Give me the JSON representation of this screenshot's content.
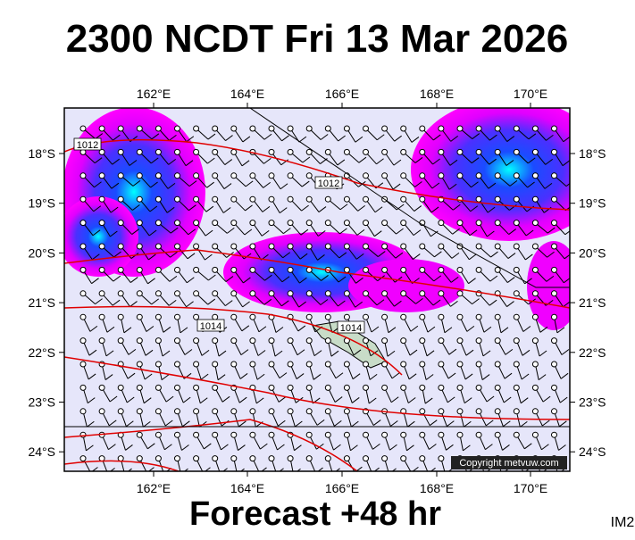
{
  "header": {
    "title": "2300 NCDT Fri 13 Mar 2026"
  },
  "map": {
    "lon_labels": [
      "162°E",
      "164°E",
      "166°E",
      "168°E",
      "170°E"
    ],
    "lat_labels": [
      "18°S",
      "19°S",
      "20°S",
      "21°S",
      "22°S",
      "23°S",
      "24°S"
    ],
    "isobar_labels": [
      "1012",
      "1012",
      "1014",
      "1014"
    ],
    "copyright": "Copyright metvuw.com"
  },
  "footer": {
    "caption": "Forecast +48 hr",
    "code": "IM2"
  }
}
